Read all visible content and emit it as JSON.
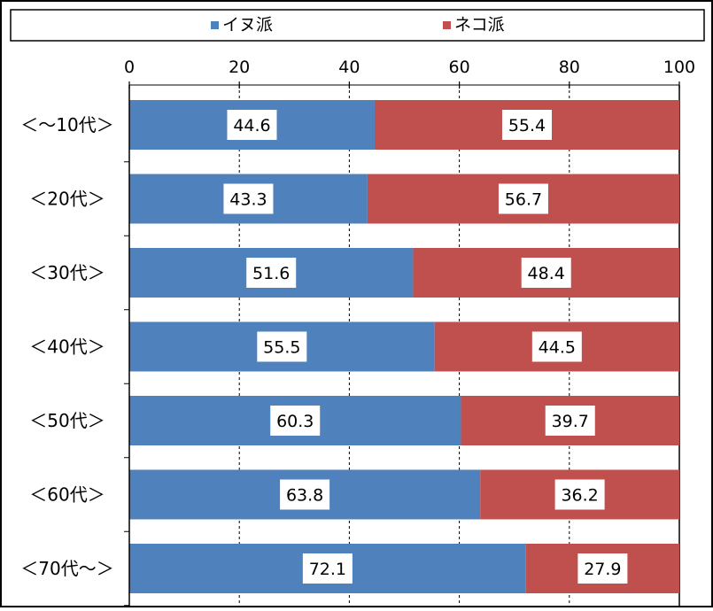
{
  "chart_data": {
    "type": "bar",
    "orientation": "horizontal",
    "stacked": true,
    "categories": [
      "＜～10代＞",
      "＜20代＞",
      "＜30代＞",
      "＜40代＞",
      "＜50代＞",
      "＜60代＞",
      "＜70代～＞"
    ],
    "series": [
      {
        "name": "イヌ派",
        "color": "#4f81bd",
        "values": [
          44.6,
          43.3,
          51.6,
          55.5,
          60.3,
          63.8,
          72.1
        ]
      },
      {
        "name": "ネコ派",
        "color": "#c0504d",
        "values": [
          55.4,
          56.7,
          48.4,
          44.5,
          39.7,
          36.2,
          27.9
        ]
      }
    ],
    "xlim": [
      0,
      100
    ],
    "xticks": [
      0,
      20,
      40,
      60,
      80,
      100
    ],
    "grid": "vertical dashed",
    "legend_position": "top",
    "title": "",
    "xlabel": "",
    "ylabel": ""
  }
}
